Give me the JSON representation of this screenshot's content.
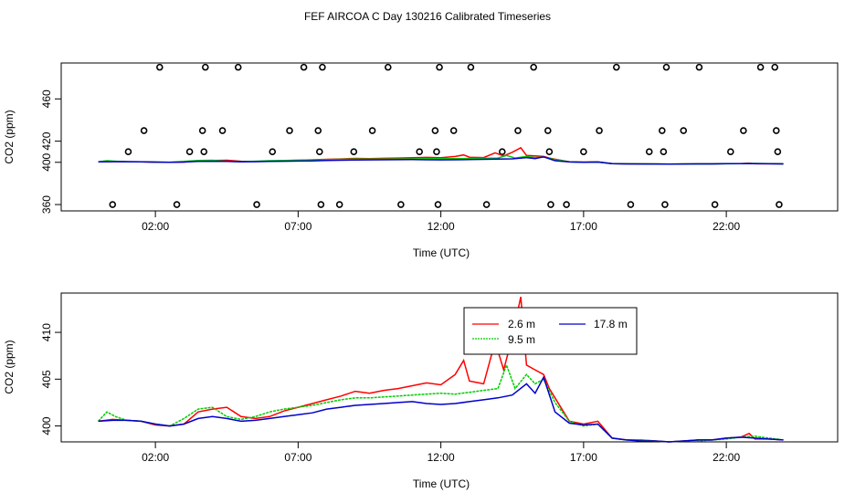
{
  "title": "FEF AIRCOA C  Day 130216  Calibrated Timeseries",
  "chart_data": [
    {
      "type": "line",
      "xlabel": "Time (UTC)",
      "ylabel": "CO2 (ppm)",
      "xlim": [
        -1.3,
        25.9
      ],
      "ylim": [
        354,
        494
      ],
      "xticks": [
        2,
        7,
        12,
        17,
        22
      ],
      "xtick_labels": [
        "02:00",
        "07:00",
        "12:00",
        "17:00",
        "22:00"
      ],
      "yticks": [
        360,
        400,
        420,
        460
      ],
      "ytick_labels": [
        "360",
        "400",
        "420",
        "460"
      ],
      "scatter_points": {
        "x": [
          0.5,
          1.05,
          1.6,
          2.15,
          2.75,
          3.2,
          3.65,
          3.7,
          3.75,
          4.35,
          4.9,
          5.55,
          6.1,
          6.7,
          7.2,
          7.7,
          7.75,
          7.8,
          7.85,
          8.45,
          8.95,
          9.6,
          10.15,
          10.6,
          11.25,
          11.8,
          11.85,
          11.9,
          11.95,
          12.45,
          13.05,
          13.6,
          14.15,
          14.7,
          15.25,
          15.75,
          15.8,
          15.85,
          16.4,
          17.0,
          17.55,
          18.15,
          18.65,
          19.3,
          19.75,
          19.8,
          19.85,
          19.9,
          20.5,
          21.05,
          21.6,
          22.15,
          22.6,
          23.2,
          23.7,
          23.75,
          23.8,
          23.85
        ],
        "y": [
          360,
          410,
          430,
          490,
          360,
          410,
          430,
          410,
          490,
          430,
          490,
          360,
          410,
          430,
          490,
          430,
          410,
          360,
          490,
          360,
          410,
          430,
          490,
          360,
          410,
          430,
          410,
          360,
          490,
          430,
          490,
          360,
          410,
          430,
          490,
          430,
          410,
          360,
          360,
          410,
          430,
          490,
          360,
          410,
          430,
          410,
          360,
          490,
          430,
          490,
          360,
          410,
          430,
          490,
          490,
          430,
          410,
          360
        ]
      },
      "series": [
        {
          "name": "2.6 m",
          "color": "#ff0000"
        },
        {
          "name": "9.5 m",
          "color": "#00cc00"
        },
        {
          "name": "17.8 m",
          "color": "#0000cc"
        }
      ]
    },
    {
      "type": "line",
      "xlabel": "Time (UTC)",
      "ylabel": "CO2 (ppm)",
      "xlim": [
        -1.3,
        25.9
      ],
      "ylim": [
        398.3,
        414.2
      ],
      "xticks": [
        2,
        7,
        12,
        17,
        22
      ],
      "xtick_labels": [
        "02:00",
        "07:00",
        "12:00",
        "17:00",
        "22:00"
      ],
      "yticks": [
        400,
        405,
        410
      ],
      "ytick_labels": [
        "400",
        "405",
        "410"
      ],
      "legend": {
        "position": "top-center",
        "ncol": 2
      },
      "series": [
        {
          "name": "2.6 m",
          "color": "#ff0000",
          "x": [
            0,
            0.5,
            1,
            1.5,
            2,
            2.5,
            3,
            3.5,
            4,
            4.5,
            5,
            5.5,
            6,
            6.5,
            7,
            7.5,
            8,
            8.5,
            9,
            9.5,
            10,
            10.5,
            11,
            11.5,
            12,
            12.5,
            12.8,
            13,
            13.5,
            13.9,
            14.2,
            14.5,
            14.8,
            15,
            15.3,
            15.6,
            15.8,
            16,
            16.5,
            17,
            17.5,
            18,
            18.5,
            19,
            19.5,
            20,
            20.5,
            21,
            21.5,
            22,
            22.5,
            22.8,
            23,
            23.5,
            24
          ],
          "y": [
            400.5,
            400.7,
            400.6,
            400.5,
            400.1,
            400.0,
            400.2,
            401.5,
            401.8,
            402.0,
            401.0,
            400.8,
            401.0,
            401.6,
            402.0,
            402.4,
            402.8,
            403.2,
            403.7,
            403.5,
            403.8,
            404.0,
            404.3,
            404.6,
            404.4,
            405.5,
            407.0,
            404.8,
            404.5,
            409.0,
            406.0,
            409.5,
            413.8,
            406.5,
            406.0,
            405.5,
            404.0,
            403.0,
            400.5,
            400.2,
            400.5,
            398.7,
            398.5,
            398.5,
            398.4,
            398.3,
            398.4,
            398.5,
            398.5,
            398.7,
            398.8,
            399.2,
            398.6,
            398.6,
            398.5
          ]
        },
        {
          "name": "9.5 m",
          "color": "#00cc00",
          "x": [
            0,
            0.3,
            0.6,
            1,
            1.5,
            2,
            2.5,
            3,
            3.5,
            4,
            4.5,
            5,
            5.5,
            6,
            6.5,
            7,
            7.5,
            8,
            8.5,
            9,
            9.5,
            10,
            10.5,
            11,
            11.5,
            12,
            12.5,
            13,
            13.5,
            14,
            14.3,
            14.6,
            15,
            15.3,
            15.6,
            16,
            16.5,
            17,
            17.5,
            18,
            18.5,
            19,
            19.5,
            20,
            20.5,
            21,
            21.5,
            22,
            22.5,
            23,
            23.5,
            24
          ],
          "y": [
            400.5,
            401.5,
            401.0,
            400.6,
            400.5,
            400.2,
            400.0,
            400.8,
            401.8,
            402.0,
            401.0,
            400.7,
            401.0,
            401.5,
            401.8,
            402.0,
            402.2,
            402.5,
            402.8,
            403.0,
            403.0,
            403.1,
            403.2,
            403.3,
            403.4,
            403.5,
            403.4,
            403.6,
            403.8,
            404.0,
            406.5,
            404.0,
            405.5,
            404.5,
            405.0,
            402.5,
            400.5,
            400.0,
            400.2,
            398.7,
            398.5,
            398.5,
            398.4,
            398.3,
            398.4,
            398.4,
            398.5,
            398.6,
            398.8,
            398.9,
            398.7,
            398.5
          ]
        },
        {
          "name": "17.8 m",
          "color": "#0000cc",
          "x": [
            0,
            0.5,
            1,
            1.5,
            2,
            2.5,
            3,
            3.5,
            4,
            4.5,
            5,
            5.5,
            6,
            6.5,
            7,
            7.5,
            8,
            8.5,
            9,
            9.5,
            10,
            10.5,
            11,
            11.5,
            12,
            12.5,
            13,
            13.5,
            14,
            14.5,
            15,
            15.3,
            15.6,
            16,
            16.5,
            17,
            17.5,
            18,
            18.5,
            19,
            19.5,
            20,
            20.5,
            21,
            21.5,
            22,
            22.5,
            23,
            23.5,
            24
          ],
          "y": [
            400.5,
            400.6,
            400.6,
            400.5,
            400.2,
            400.0,
            400.2,
            400.8,
            401.0,
            400.8,
            400.5,
            400.6,
            400.8,
            401.0,
            401.2,
            401.4,
            401.8,
            402.0,
            402.2,
            402.3,
            402.4,
            402.5,
            402.6,
            402.4,
            402.3,
            402.4,
            402.6,
            402.8,
            403.0,
            403.3,
            404.5,
            403.5,
            405.2,
            401.5,
            400.3,
            400.1,
            400.2,
            398.7,
            398.5,
            398.4,
            398.4,
            398.3,
            398.4,
            398.5,
            398.5,
            398.7,
            398.8,
            398.7,
            398.6,
            398.5
          ]
        }
      ]
    }
  ]
}
